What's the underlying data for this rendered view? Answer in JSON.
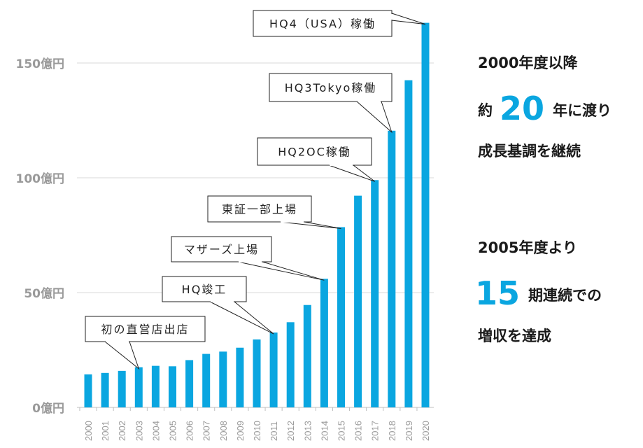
{
  "chart_data": {
    "type": "bar",
    "categories": [
      "2000",
      "2001",
      "2002",
      "2003",
      "2004",
      "2005",
      "2006",
      "2007",
      "2008",
      "2009",
      "2010",
      "2011",
      "2012",
      "2013",
      "2014",
      "2015",
      "2016",
      "2017",
      "2018",
      "2019",
      "2020"
    ],
    "values": [
      14.4,
      15.0,
      15.9,
      17.5,
      18.1,
      17.9,
      20.6,
      23.3,
      24.3,
      26.0,
      29.6,
      32.6,
      37.1,
      44.6,
      56.0,
      78.5,
      92.2,
      99.0,
      120.5,
      142.5,
      167.5
    ],
    "ylim": [
      0,
      170
    ],
    "yticks": [
      0,
      50,
      100,
      150
    ],
    "ytick_labels": [
      "0億円",
      "50億円",
      "100億円",
      "150億円"
    ],
    "grid": true,
    "bar_color": "#0aa6e0",
    "annotations": [
      {
        "year": "2003",
        "text": "初の直営店出店"
      },
      {
        "year": "2011",
        "text": "HQ竣工"
      },
      {
        "year": "2014",
        "text": "マザーズ上場"
      },
      {
        "year": "2015",
        "text": "東証一部上場"
      },
      {
        "year": "2017",
        "text": "HQ2OC稼働"
      },
      {
        "year": "2018",
        "text": "HQ3Tokyo稼働"
      },
      {
        "year": "2020",
        "text": "HQ4（USA）稼働"
      }
    ]
  },
  "side": {
    "line1": "2000年度以降",
    "line2_pre": "約",
    "line2_num": "20",
    "line2_post": "年に渡り",
    "line3": "成長基調を継続",
    "line4": "2005年度より",
    "line5_num": "15",
    "line5_post": "期連続での",
    "line6": "増収を達成",
    "accent_color": "#0aa6e0"
  }
}
